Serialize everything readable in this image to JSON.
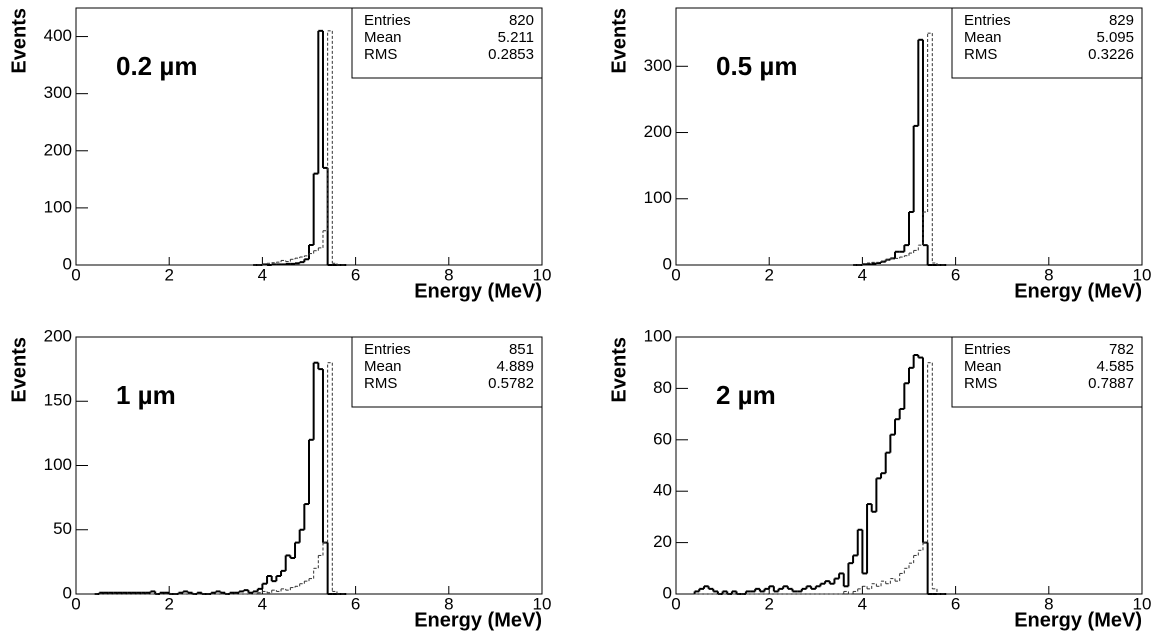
{
  "chart_data": [
    {
      "type": "histogram",
      "annotation": "0.2 µm",
      "xlabel": "Energy (MeV)",
      "ylabel": "Events",
      "stats": {
        "labels": [
          "Entries",
          "Mean",
          "RMS"
        ],
        "values": [
          820,
          5.211,
          0.2853
        ]
      },
      "xlim": [
        0,
        10
      ],
      "xticks": [
        0,
        2,
        4,
        6,
        8,
        10
      ],
      "ylim": [
        0,
        450
      ],
      "yticks": [
        0,
        100,
        200,
        300,
        400
      ],
      "bins": [
        3.8,
        3.9,
        4.0,
        4.1,
        4.2,
        4.3,
        4.4,
        4.5,
        4.6,
        4.7,
        4.8,
        4.9,
        5.0,
        5.1,
        5.2,
        5.3,
        5.4,
        5.5,
        5.6,
        5.7,
        5.8
      ],
      "series": [
        {
          "style": "solid",
          "color": "#000000",
          "values": [
            0,
            0,
            1,
            0,
            1,
            1,
            1,
            2,
            2,
            3,
            5,
            10,
            35,
            160,
            410,
            170,
            0,
            0,
            0,
            0
          ]
        },
        {
          "style": "dashed",
          "color": "#333333",
          "values": [
            0,
            0,
            2,
            3,
            4,
            5,
            8,
            6,
            10,
            12,
            14,
            16,
            20,
            25,
            30,
            60,
            410,
            3,
            0,
            0
          ]
        }
      ]
    },
    {
      "type": "histogram",
      "annotation": "0.5 µm",
      "xlabel": "Energy (MeV)",
      "ylabel": "Events",
      "stats": {
        "labels": [
          "Entries",
          "Mean",
          "RMS"
        ],
        "values": [
          829,
          5.095,
          0.3226
        ]
      },
      "xlim": [
        0,
        10
      ],
      "xticks": [
        0,
        2,
        4,
        6,
        8,
        10
      ],
      "ylim": [
        0,
        388
      ],
      "yticks": [
        0,
        100,
        200,
        300
      ],
      "bins": [
        3.8,
        3.9,
        4.0,
        4.1,
        4.2,
        4.3,
        4.4,
        4.5,
        4.6,
        4.7,
        4.8,
        4.9,
        5.0,
        5.1,
        5.2,
        5.3,
        5.4,
        5.5,
        5.6,
        5.7,
        5.8
      ],
      "series": [
        {
          "style": "solid",
          "color": "#000000",
          "values": [
            0,
            0,
            1,
            1,
            2,
            3,
            5,
            8,
            10,
            20,
            20,
            30,
            80,
            210,
            340,
            30,
            0,
            0,
            0,
            0
          ]
        },
        {
          "style": "dashed",
          "color": "#333333",
          "values": [
            0,
            0,
            2,
            3,
            4,
            4,
            6,
            8,
            10,
            10,
            12,
            14,
            18,
            22,
            30,
            80,
            350,
            3,
            0,
            0
          ]
        }
      ]
    },
    {
      "type": "histogram",
      "annotation": "1 µm",
      "xlabel": "Energy (MeV)",
      "ylabel": "Events",
      "stats": {
        "labels": [
          "Entries",
          "Mean",
          "RMS"
        ],
        "values": [
          851,
          4.889,
          0.5782
        ]
      },
      "xlim": [
        0,
        10
      ],
      "xticks": [
        0,
        2,
        4,
        6,
        8,
        10
      ],
      "ylim": [
        0,
        200
      ],
      "yticks": [
        0,
        50,
        100,
        150,
        200
      ],
      "bins": [
        0.4,
        0.5,
        0.6,
        0.7,
        0.8,
        0.9,
        1.0,
        1.1,
        1.2,
        1.3,
        1.4,
        1.5,
        1.6,
        1.7,
        1.8,
        1.9,
        2.0,
        2.1,
        2.2,
        2.3,
        2.4,
        2.5,
        2.6,
        2.7,
        2.8,
        2.9,
        3.0,
        3.1,
        3.2,
        3.3,
        3.4,
        3.5,
        3.6,
        3.7,
        3.8,
        3.9,
        4.0,
        4.1,
        4.2,
        4.3,
        4.4,
        4.5,
        4.6,
        4.7,
        4.8,
        4.9,
        5.0,
        5.1,
        5.2,
        5.3,
        5.4,
        5.5,
        5.6,
        5.7,
        5.8
      ],
      "series": [
        {
          "style": "solid",
          "color": "#000000",
          "values": [
            0,
            1,
            1,
            1,
            1,
            1,
            1,
            1,
            1,
            1,
            1,
            1,
            2,
            0,
            1,
            1,
            0,
            0,
            1,
            2,
            1,
            0,
            1,
            0,
            0,
            1,
            2,
            1,
            0,
            1,
            1,
            2,
            3,
            1,
            2,
            4,
            8,
            14,
            10,
            14,
            18,
            30,
            28,
            40,
            50,
            70,
            120,
            180,
            175,
            40,
            0,
            0,
            0,
            0
          ]
        },
        {
          "style": "dashed",
          "color": "#333333",
          "values": [
            0,
            0,
            0,
            0,
            0,
            0,
            0,
            0,
            0,
            0,
            0,
            0,
            0,
            0,
            0,
            0,
            0,
            0,
            0,
            0,
            0,
            0,
            0,
            0,
            0,
            0,
            0,
            0,
            0,
            0,
            0,
            0,
            0,
            0,
            0,
            1,
            2,
            1,
            3,
            2,
            4,
            3,
            5,
            6,
            8,
            10,
            12,
            20,
            30,
            40,
            180,
            2,
            0,
            0
          ]
        }
      ]
    },
    {
      "type": "histogram",
      "annotation": "2 µm",
      "xlabel": "Energy (MeV)",
      "ylabel": "Events",
      "stats": {
        "labels": [
          "Entries",
          "Mean",
          "RMS"
        ],
        "values": [
          782,
          4.585,
          0.7887
        ]
      },
      "xlim": [
        0,
        10
      ],
      "xticks": [
        0,
        2,
        4,
        6,
        8,
        10
      ],
      "ylim": [
        0,
        100
      ],
      "yticks": [
        0,
        20,
        40,
        60,
        80,
        100
      ],
      "bins": [
        0.4,
        0.5,
        0.6,
        0.7,
        0.8,
        0.9,
        1.0,
        1.1,
        1.2,
        1.3,
        1.4,
        1.5,
        1.6,
        1.7,
        1.8,
        1.9,
        2.0,
        2.1,
        2.2,
        2.3,
        2.4,
        2.5,
        2.6,
        2.7,
        2.8,
        2.9,
        3.0,
        3.1,
        3.2,
        3.3,
        3.4,
        3.5,
        3.6,
        3.7,
        3.8,
        3.9,
        4.0,
        4.1,
        4.2,
        4.3,
        4.4,
        4.5,
        4.6,
        4.7,
        4.8,
        4.9,
        5.0,
        5.1,
        5.2,
        5.3,
        5.4,
        5.5,
        5.6,
        5.7,
        5.8
      ],
      "series": [
        {
          "style": "solid",
          "color": "#000000",
          "values": [
            1,
            2,
            3,
            2,
            1,
            0,
            1,
            0,
            1,
            0,
            0,
            1,
            1,
            2,
            1,
            2,
            3,
            1,
            2,
            3,
            2,
            1,
            1,
            2,
            3,
            2,
            3,
            4,
            5,
            4,
            6,
            8,
            3,
            12,
            15,
            25,
            8,
            35,
            32,
            45,
            47,
            55,
            62,
            68,
            72,
            82,
            88,
            93,
            92,
            20,
            0,
            0,
            0,
            0
          ]
        },
        {
          "style": "dashed",
          "color": "#333333",
          "values": [
            0,
            0,
            0,
            0,
            0,
            0,
            0,
            0,
            0,
            0,
            0,
            0,
            0,
            0,
            0,
            0,
            0,
            0,
            0,
            0,
            0,
            0,
            0,
            0,
            0,
            0,
            0,
            0,
            0,
            0,
            0,
            0,
            1,
            0,
            1,
            2,
            3,
            2,
            4,
            3,
            5,
            4,
            6,
            5,
            8,
            10,
            12,
            15,
            17,
            20,
            90,
            2,
            0,
            0
          ]
        }
      ]
    }
  ]
}
